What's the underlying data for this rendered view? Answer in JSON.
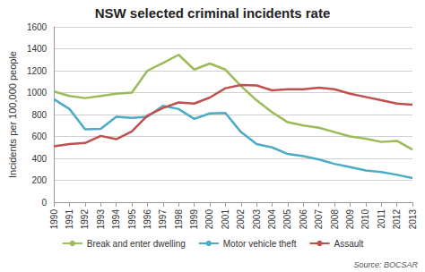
{
  "chart_data": {
    "type": "line",
    "title": "NSW selected criminal incidents rate",
    "y_label": "Incidents per 100,000 people",
    "annotations": [
      "Source: BOCSAR"
    ],
    "categories": [
      "1990",
      "1991",
      "1992",
      "1993",
      "1994",
      "1995",
      "1996",
      "1997",
      "1998",
      "1999",
      "2000",
      "2001",
      "2002",
      "2003",
      "2004",
      "2005",
      "2006",
      "2007",
      "2008",
      "2009",
      "2010",
      "2011",
      "2012",
      "2013"
    ],
    "series": [
      {
        "name": "Break and enter dwelling",
        "color": "#9bbb59",
        "values": [
          1010,
          970,
          950,
          970,
          990,
          1000,
          1200,
          1270,
          1345,
          1210,
          1265,
          1210,
          1060,
          930,
          820,
          730,
          700,
          680,
          640,
          600,
          580,
          550,
          560,
          480
        ]
      },
      {
        "name": "Motor vehicle theft",
        "color": "#4bacc6",
        "values": [
          940,
          850,
          665,
          670,
          780,
          770,
          780,
          880,
          850,
          760,
          810,
          815,
          640,
          530,
          500,
          440,
          420,
          390,
          350,
          320,
          290,
          275,
          250,
          220
        ]
      },
      {
        "name": "Assault",
        "color": "#c0504d",
        "values": [
          510,
          530,
          540,
          605,
          575,
          645,
          790,
          860,
          910,
          900,
          955,
          1040,
          1070,
          1065,
          1020,
          1030,
          1030,
          1045,
          1030,
          990,
          960,
          930,
          900,
          890
        ]
      }
    ],
    "ylim": [
      0,
      1600
    ],
    "yticks": [
      0,
      200,
      400,
      600,
      800,
      1000,
      1200,
      1400,
      1600
    ],
    "grid": true,
    "legend": "bottom"
  }
}
